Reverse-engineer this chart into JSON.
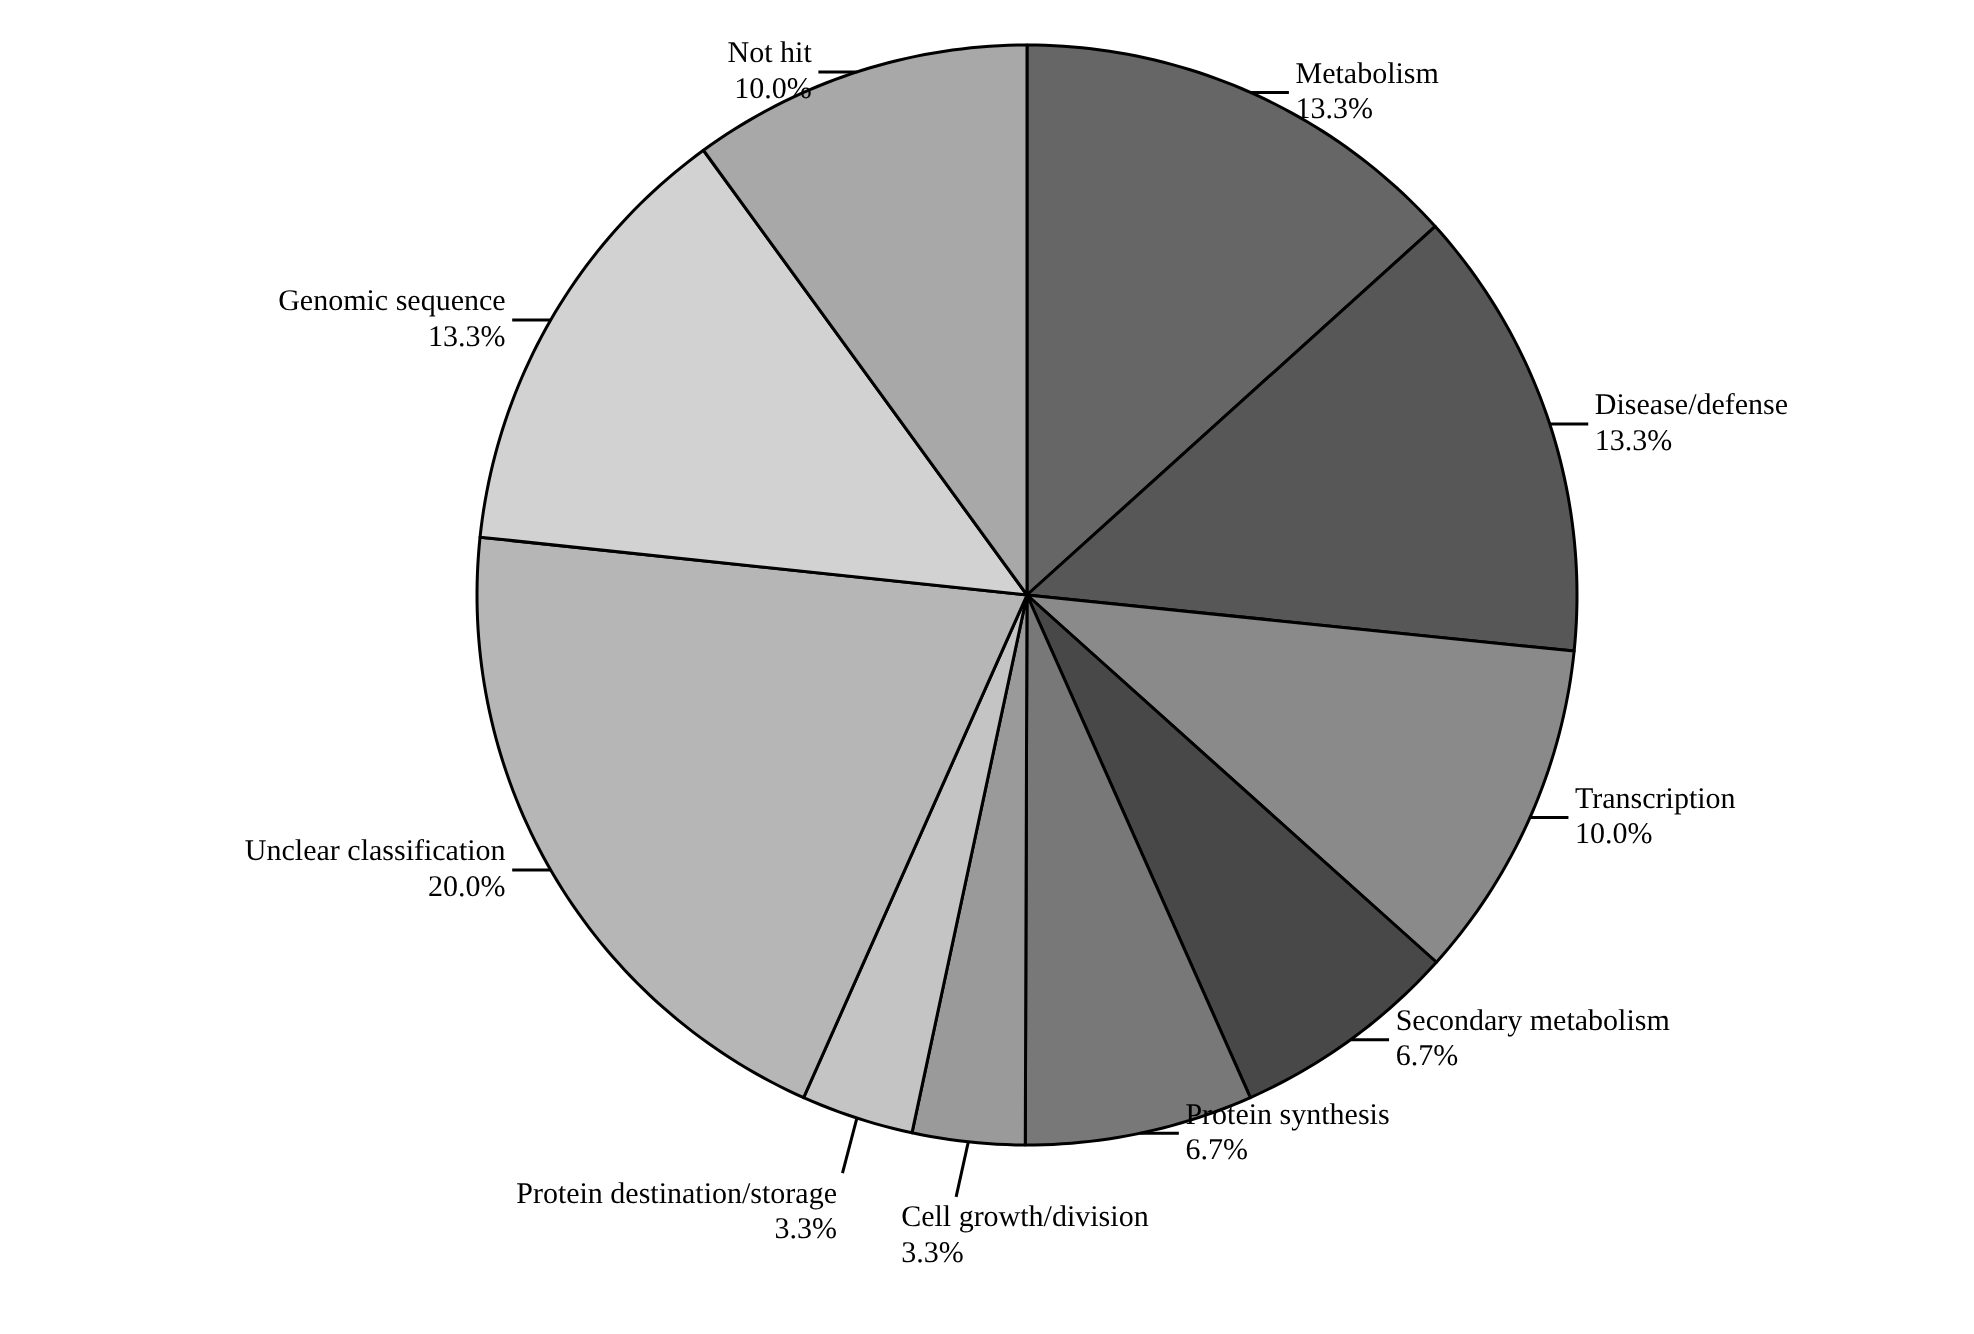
{
  "chart_data": {
    "type": "pie",
    "categories": [
      "Metabolism",
      "Disease/defense",
      "Transcription",
      "Secondary metabolism",
      "Protein synthesis",
      "Cell growth/division",
      "Protein destination/storage",
      "Unclear classification",
      "Genomic sequence",
      "Not hit"
    ],
    "values": [
      13.3,
      13.3,
      10.0,
      6.7,
      6.7,
      3.3,
      3.3,
      20.0,
      13.3,
      10.0
    ],
    "colors": [
      "#666666",
      "#575757",
      "#8a8a8a",
      "#484848",
      "#787878",
      "#9a9a9a",
      "#c4c4c4",
      "#b6b6b6",
      "#d2d2d2",
      "#a8a8a8"
    ],
    "value_labels": [
      "13.3%",
      "13.3%",
      "10.0%",
      "6.7%",
      "6.7%",
      "3.3%",
      "3.3%",
      "20.0%",
      "13.3%",
      "10.0%"
    ]
  }
}
